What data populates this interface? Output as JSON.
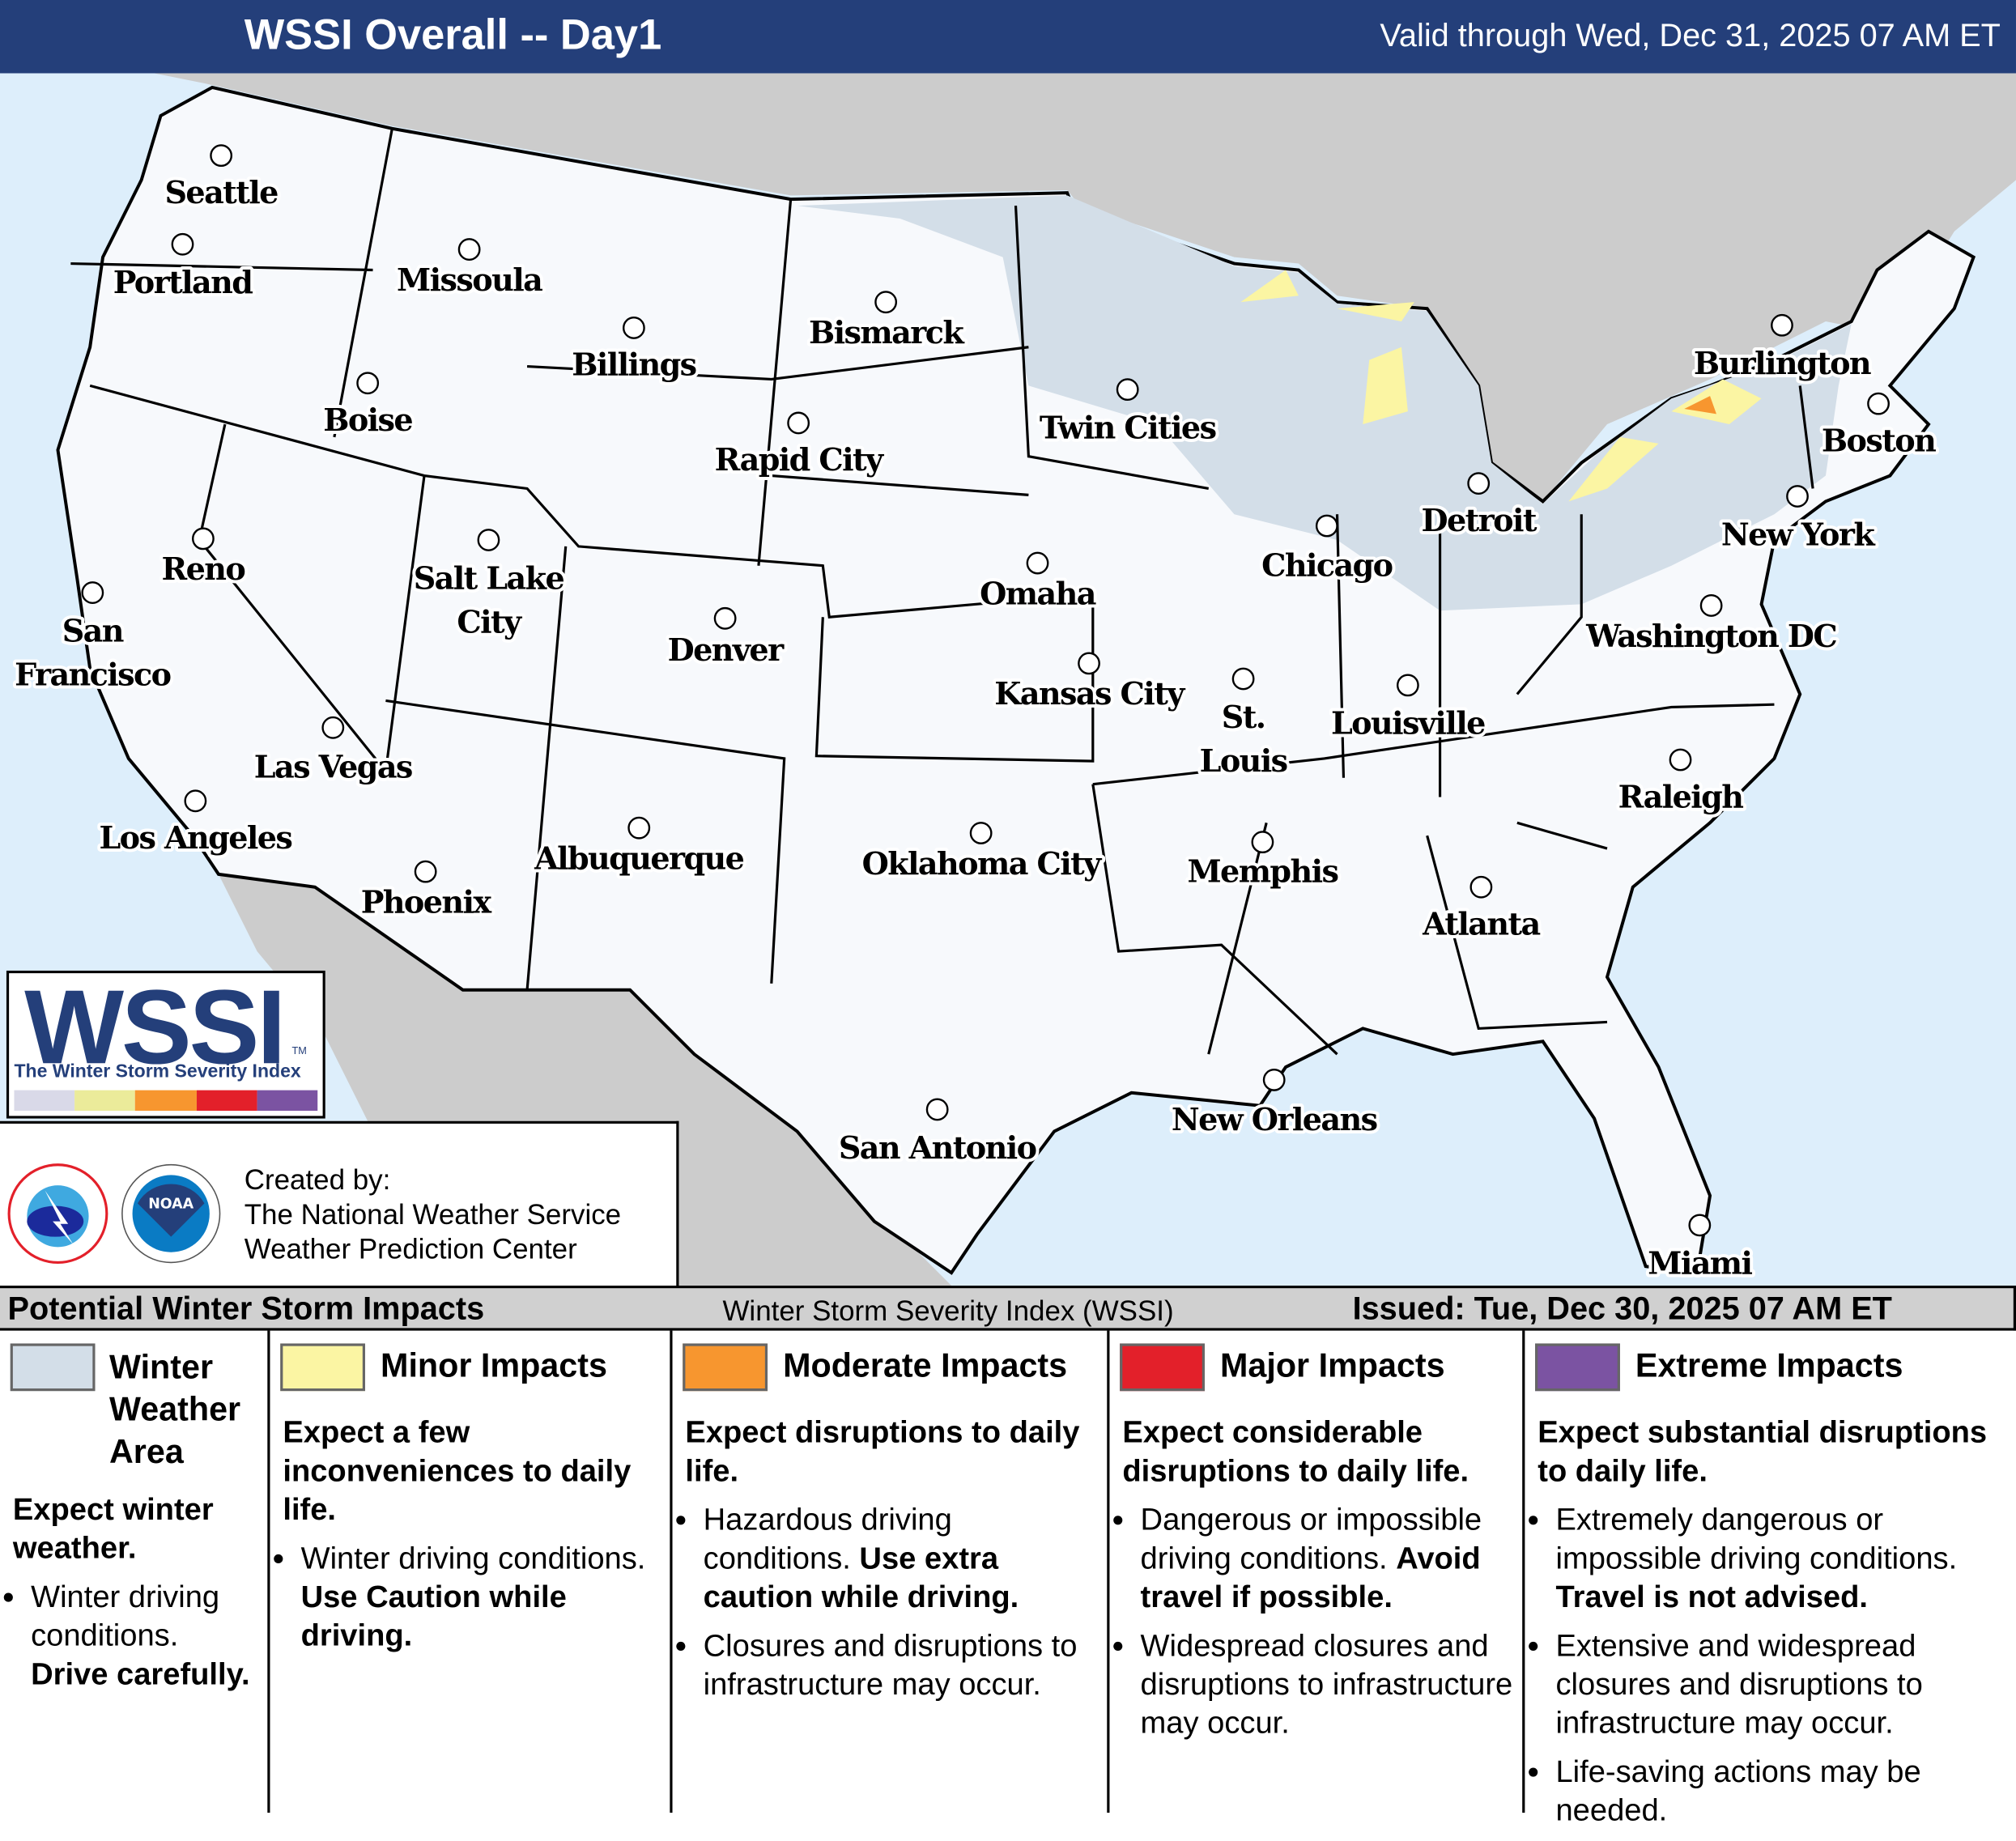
{
  "header": {
    "title": "WSSI Overall -- Day1",
    "valid": "Valid through Wed, Dec 31, 2025 07 AM ET"
  },
  "colors": {
    "header_bg": "#243f7a",
    "ocean": "#ddeefb",
    "foreign_land": "#cccccc",
    "us_land": "#f7f9fc",
    "winter_weather_area": "#d3dee8",
    "minor": "#fbf5a3",
    "moderate": "#f7962f",
    "major": "#e3202a",
    "extreme": "#7b53a2"
  },
  "cities": [
    "Seattle",
    "Portland",
    "Missoula",
    "Billings",
    "Bismarck",
    "Boise",
    "Rapid City",
    "Twin Cities",
    "Burlington",
    "Boston",
    "Reno",
    "Salt Lake City",
    "Detroit",
    "Chicago",
    "New York",
    "Omaha",
    "San Francisco",
    "Denver",
    "Washington DC",
    "Kansas City",
    "St. Louis",
    "Louisville",
    "Las Vegas",
    "Los Angeles",
    "Raleigh",
    "Albuquerque",
    "Oklahoma City",
    "Memphis",
    "Phoenix",
    "Atlanta",
    "New Orleans",
    "San Antonio",
    "Miami"
  ],
  "logo": {
    "wordmark": "WSSI",
    "tm": "TM",
    "subtitle": "The Winter Storm Severity Index"
  },
  "credit": {
    "line1": "Created by:",
    "line2": "The National Weather Service",
    "line3": "Weather Prediction Center",
    "nws_logo_text": "NATIONAL WEATHER SERVICE",
    "noaa_logo_text": "NOAA"
  },
  "legend_header": {
    "left": "Potential Winter Storm Impacts",
    "center": "Winter Storm Severity Index (WSSI)",
    "right": "Issued: Tue, Dec 30, 2025 07 AM ET"
  },
  "legend": [
    {
      "title": "Winter Weather Area",
      "desc": "Expect winter weather.",
      "bullets": [
        {
          "text": "Winter driving conditions. ",
          "bold": "Drive carefully."
        }
      ]
    },
    {
      "title": "Minor Impacts",
      "desc": "Expect a few inconveniences to daily life.",
      "bullets": [
        {
          "text": "Winter driving conditions. ",
          "bold": "Use Caution while driving."
        }
      ]
    },
    {
      "title": "Moderate Impacts",
      "desc": "Expect disruptions to daily life.",
      "bullets": [
        {
          "text": "Hazardous driving conditions. ",
          "bold": "Use extra caution while driving."
        },
        {
          "text": "Closures and disruptions to infrastructure may occur.",
          "bold": ""
        }
      ]
    },
    {
      "title": "Major Impacts",
      "desc": "Expect considerable disruptions to daily life.",
      "bullets": [
        {
          "text": "Dangerous or impossible driving conditions. ",
          "bold": "Avoid travel if possible."
        },
        {
          "text": "Widespread closures and disruptions to infrastructure may occur.",
          "bold": ""
        }
      ]
    },
    {
      "title": "Extreme Impacts",
      "desc": "Expect substantial disruptions to daily life.",
      "bullets": [
        {
          "text": "Extremely dangerous or impossible driving conditions. ",
          "bold": "Travel is not advised."
        },
        {
          "text": "Extensive and widespread closures and disruptions to infrastructure may occur.",
          "bold": ""
        },
        {
          "text": "Life-saving actions may be needed.",
          "bold": ""
        }
      ]
    }
  ]
}
